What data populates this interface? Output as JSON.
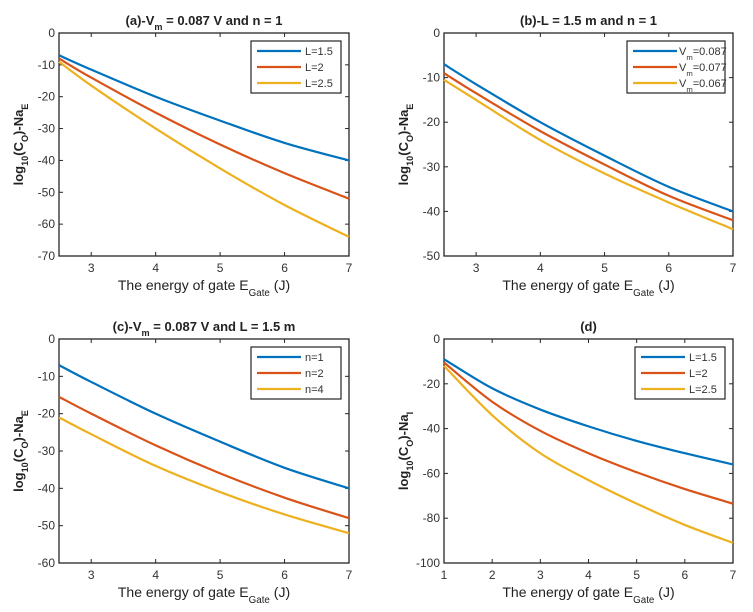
{
  "chart_data": [
    {
      "type": "line",
      "panel": "a",
      "title_parts": [
        {
          "t": "(a)-V"
        },
        {
          "t": "m",
          "sub": true
        },
        {
          "t": " = 0.087 V and n = 1"
        }
      ],
      "xlabel_parts": [
        {
          "t": "The energy of gate E"
        },
        {
          "t": "Gate",
          "sub": true
        },
        {
          "t": " (J)"
        }
      ],
      "ylabel_parts": [
        {
          "t": "log"
        },
        {
          "t": "10",
          "sub": true
        },
        {
          "t": "(C"
        },
        {
          "t": "O",
          "sub": true
        },
        {
          "t": ")-Na"
        },
        {
          "t": "E",
          "sub": true
        }
      ],
      "xlim": [
        2.5,
        7
      ],
      "ylim": [
        -70,
        0
      ],
      "xticks": [
        3,
        4,
        5,
        6,
        7
      ],
      "yticks": [
        0,
        -10,
        -20,
        -30,
        -40,
        -50,
        -60,
        -70
      ],
      "legend": "top-right",
      "x": [
        2.5,
        3,
        4,
        5,
        6,
        7
      ],
      "series": [
        {
          "name_parts": [
            {
              "t": "L=1.5"
            }
          ],
          "color": "#0072BD",
          "y": [
            -7,
            -11.5,
            -20,
            -27.5,
            -34.5,
            -40
          ]
        },
        {
          "name_parts": [
            {
              "t": "L=2"
            }
          ],
          "color": "#D95319",
          "y": [
            -8,
            -14,
            -25,
            -35,
            -44,
            -52
          ]
        },
        {
          "name_parts": [
            {
              "t": "L=2.5"
            }
          ],
          "color": "#EDB120",
          "y": [
            -9,
            -16.5,
            -30,
            -42.5,
            -54,
            -64
          ]
        }
      ]
    },
    {
      "type": "line",
      "panel": "b",
      "title_parts": [
        {
          "t": "(b)-L = 1.5 m and n = 1"
        }
      ],
      "xlabel_parts": [
        {
          "t": "The energy of gate E"
        },
        {
          "t": "Gate",
          "sub": true
        },
        {
          "t": " (J)"
        }
      ],
      "ylabel_parts": [
        {
          "t": "log"
        },
        {
          "t": "10",
          "sub": true
        },
        {
          "t": "(C"
        },
        {
          "t": "O",
          "sub": true
        },
        {
          "t": ")-Na"
        },
        {
          "t": "E",
          "sub": true
        }
      ],
      "xlim": [
        2.5,
        7
      ],
      "ylim": [
        -50,
        0
      ],
      "xticks": [
        3,
        4,
        5,
        6,
        7
      ],
      "yticks": [
        0,
        -10,
        -20,
        -30,
        -40,
        -50
      ],
      "legend": "top-right",
      "x": [
        2.5,
        3,
        4,
        5,
        6,
        7
      ],
      "series": [
        {
          "name_parts": [
            {
              "t": "V"
            },
            {
              "t": "m",
              "sub": true
            },
            {
              "t": "=0.087"
            }
          ],
          "color": "#0072BD",
          "y": [
            -7,
            -11.5,
            -20,
            -27.5,
            -34.5,
            -40
          ]
        },
        {
          "name_parts": [
            {
              "t": "V"
            },
            {
              "t": "m",
              "sub": true
            },
            {
              "t": "=0.077"
            }
          ],
          "color": "#D95319",
          "y": [
            -9,
            -13.5,
            -22,
            -29.5,
            -36.5,
            -42
          ]
        },
        {
          "name_parts": [
            {
              "t": "V"
            },
            {
              "t": "m",
              "sub": true
            },
            {
              "t": "=0.067"
            }
          ],
          "color": "#EDB120",
          "y": [
            -10.5,
            -15,
            -24,
            -31.5,
            -38,
            -44
          ]
        }
      ]
    },
    {
      "type": "line",
      "panel": "c",
      "title_parts": [
        {
          "t": "(c)-V"
        },
        {
          "t": "m",
          "sub": true
        },
        {
          "t": " = 0.087 V and L = 1.5 m"
        }
      ],
      "xlabel_parts": [
        {
          "t": "The energy of gate E"
        },
        {
          "t": "Gate",
          "sub": true
        },
        {
          "t": " (J)"
        }
      ],
      "ylabel_parts": [
        {
          "t": "log"
        },
        {
          "t": "10",
          "sub": true
        },
        {
          "t": "(C"
        },
        {
          "t": "O",
          "sub": true
        },
        {
          "t": ")-Na"
        },
        {
          "t": "E",
          "sub": true
        }
      ],
      "xlim": [
        2.5,
        7
      ],
      "ylim": [
        -60,
        0
      ],
      "xticks": [
        3,
        4,
        5,
        6,
        7
      ],
      "yticks": [
        0,
        -10,
        -20,
        -30,
        -40,
        -50,
        -60
      ],
      "legend": "top-right",
      "x": [
        2.5,
        3,
        4,
        5,
        6,
        7
      ],
      "series": [
        {
          "name_parts": [
            {
              "t": "n=1"
            }
          ],
          "color": "#0072BD",
          "y": [
            -7,
            -11.5,
            -20,
            -27.5,
            -34.5,
            -40
          ]
        },
        {
          "name_parts": [
            {
              "t": "n=2"
            }
          ],
          "color": "#D95319",
          "y": [
            -15.5,
            -20,
            -28.5,
            -36,
            -42.5,
            -48
          ]
        },
        {
          "name_parts": [
            {
              "t": "n=4"
            }
          ],
          "color": "#EDB120",
          "y": [
            -21,
            -25.5,
            -34,
            -41,
            -47,
            -52
          ]
        }
      ]
    },
    {
      "type": "line",
      "panel": "d",
      "title_parts": [
        {
          "t": "(d)"
        }
      ],
      "xlabel_parts": [
        {
          "t": "The energy of gate E"
        },
        {
          "t": "Gate",
          "sub": true
        },
        {
          "t": " (J)"
        }
      ],
      "ylabel_parts": [
        {
          "t": "log"
        },
        {
          "t": "10",
          "sub": true
        },
        {
          "t": "(C"
        },
        {
          "t": "O",
          "sub": true
        },
        {
          "t": ")-Na"
        },
        {
          "t": "I",
          "sub": true
        }
      ],
      "xlim": [
        1,
        7
      ],
      "ylim": [
        -100,
        0
      ],
      "xticks": [
        1,
        2,
        3,
        4,
        5,
        6,
        7
      ],
      "yticks": [
        0,
        -20,
        -40,
        -60,
        -80,
        -100
      ],
      "legend": "top-right",
      "x": [
        1,
        2,
        3,
        4,
        5,
        6,
        7
      ],
      "series": [
        {
          "name_parts": [
            {
              "t": "L=1.5"
            }
          ],
          "color": "#0072BD",
          "y": [
            -9,
            -22,
            -31.5,
            -39,
            -45.5,
            -51,
            -56
          ]
        },
        {
          "name_parts": [
            {
              "t": "L=2"
            }
          ],
          "color": "#D95319",
          "y": [
            -10.5,
            -28,
            -41,
            -51,
            -59.5,
            -67,
            -73.5
          ]
        },
        {
          "name_parts": [
            {
              "t": "L=2.5"
            }
          ],
          "color": "#EDB120",
          "y": [
            -12,
            -34,
            -51,
            -63,
            -73.5,
            -83,
            -91
          ]
        }
      ]
    }
  ]
}
